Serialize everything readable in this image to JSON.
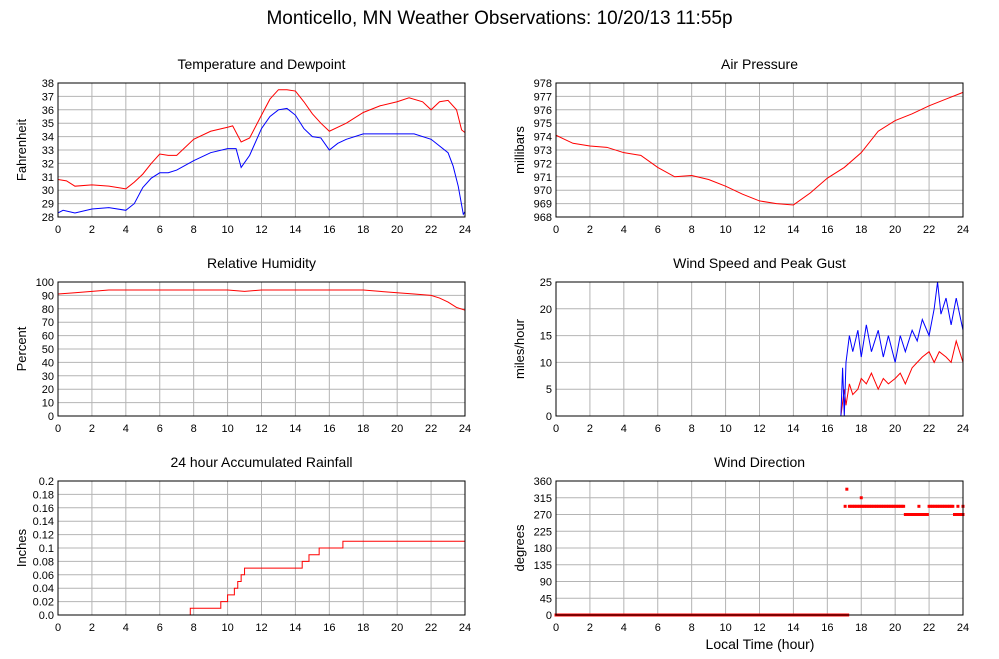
{
  "title": "Monticello, MN Weather Observations: 10/20/13 11:55p",
  "x_axis_label": "Local Time (hour)",
  "colors": {
    "primary": "#ff0000",
    "secondary": "#0000ff",
    "grid": "#b4b4b4",
    "frame": "#000000"
  },
  "chart_data": [
    {
      "id": "temp",
      "type": "line",
      "title": "Temperature and Dewpoint",
      "ylabel": "Fahrenheit",
      "xlim": [
        0,
        24
      ],
      "ylim": [
        28,
        38
      ],
      "xticks": [
        0,
        2,
        4,
        6,
        8,
        10,
        12,
        14,
        16,
        18,
        20,
        22,
        24
      ],
      "yticks": [
        28,
        29,
        30,
        31,
        32,
        33,
        34,
        35,
        36,
        37,
        38
      ],
      "series": [
        {
          "color": "#ff0000",
          "x": [
            0,
            0.5,
            1,
            2,
            3,
            4,
            4.5,
            5,
            5.5,
            6,
            6.5,
            7,
            8,
            9,
            10,
            10.3,
            10.8,
            11.3,
            12,
            12.5,
            13,
            13.5,
            14,
            14.5,
            15,
            15.5,
            16,
            17,
            18,
            19,
            20,
            20.7,
            21.5,
            22,
            22.5,
            23,
            23.5,
            23.8,
            24
          ],
          "y": [
            30.8,
            30.7,
            30.3,
            30.4,
            30.3,
            30.1,
            30.6,
            31.2,
            32.0,
            32.7,
            32.6,
            32.6,
            33.8,
            34.4,
            34.7,
            34.8,
            33.6,
            33.9,
            35.6,
            36.8,
            37.5,
            37.5,
            37.4,
            36.6,
            35.7,
            35.0,
            34.4,
            35.0,
            35.8,
            36.3,
            36.6,
            36.9,
            36.6,
            36.0,
            36.6,
            36.7,
            36.0,
            34.5,
            34.3
          ]
        },
        {
          "color": "#0000ff",
          "x": [
            0,
            0.3,
            1,
            2,
            3,
            4,
            4.5,
            5,
            5.5,
            6,
            6.5,
            7,
            8,
            9,
            10,
            10.5,
            10.8,
            11.3,
            12,
            12.5,
            13,
            13.5,
            14,
            14.5,
            15,
            15.5,
            16,
            16.5,
            17,
            18,
            19,
            20,
            21,
            22,
            22.5,
            23,
            23.3,
            23.6,
            23.9,
            24
          ],
          "y": [
            28.3,
            28.5,
            28.3,
            28.6,
            28.7,
            28.5,
            29.0,
            30.2,
            30.9,
            31.3,
            31.3,
            31.5,
            32.2,
            32.8,
            33.1,
            33.1,
            31.7,
            32.6,
            34.6,
            35.5,
            36.0,
            36.1,
            35.6,
            34.6,
            34.0,
            33.9,
            33.0,
            33.5,
            33.8,
            34.2,
            34.2,
            34.2,
            34.2,
            33.8,
            33.3,
            32.8,
            31.8,
            30.3,
            28.2,
            28.4
          ]
        }
      ]
    },
    {
      "id": "pressure",
      "type": "line",
      "title": "Air Pressure",
      "ylabel": "millibars",
      "xlim": [
        0,
        24
      ],
      "ylim": [
        968,
        978
      ],
      "xticks": [
        0,
        2,
        4,
        6,
        8,
        10,
        12,
        14,
        16,
        18,
        20,
        22,
        24
      ],
      "yticks": [
        968,
        969,
        970,
        971,
        972,
        973,
        974,
        975,
        976,
        977,
        978
      ],
      "series": [
        {
          "color": "#ff0000",
          "x": [
            0,
            0.5,
            1,
            2,
            3,
            4,
            5,
            6,
            7,
            8,
            9,
            10,
            11,
            12,
            13,
            14,
            15,
            16,
            17,
            18,
            19,
            20,
            21,
            22,
            23,
            24
          ],
          "y": [
            974.1,
            973.8,
            973.5,
            973.3,
            973.2,
            972.8,
            972.6,
            971.7,
            971.0,
            971.1,
            970.8,
            970.3,
            969.7,
            969.2,
            969.0,
            968.9,
            969.8,
            970.9,
            971.7,
            972.8,
            974.4,
            975.2,
            975.7,
            976.3,
            976.8,
            977.3
          ]
        }
      ]
    },
    {
      "id": "humidity",
      "type": "line",
      "title": "Relative Humidity",
      "ylabel": "Percent",
      "xlim": [
        0,
        24
      ],
      "ylim": [
        0,
        100
      ],
      "xticks": [
        0,
        2,
        4,
        6,
        8,
        10,
        12,
        14,
        16,
        18,
        20,
        22,
        24
      ],
      "yticks": [
        0,
        10,
        20,
        30,
        40,
        50,
        60,
        70,
        80,
        90,
        100
      ],
      "series": [
        {
          "color": "#ff0000",
          "x": [
            0,
            1,
            2,
            3,
            4,
            6,
            8,
            10,
            11,
            12,
            14,
            16,
            18,
            19,
            20,
            21,
            22,
            22.5,
            23,
            23.5,
            24
          ],
          "y": [
            91,
            92,
            93,
            94,
            94,
            94,
            94,
            94,
            93,
            94,
            94,
            94,
            94,
            93,
            92,
            91,
            90,
            88,
            85,
            81,
            79
          ]
        }
      ]
    },
    {
      "id": "wind",
      "type": "line",
      "title": "Wind Speed and Peak Gust",
      "ylabel": "miles/hour",
      "xlim": [
        0,
        24
      ],
      "ylim": [
        0,
        25
      ],
      "xticks": [
        0,
        2,
        4,
        6,
        8,
        10,
        12,
        14,
        16,
        18,
        20,
        22,
        24
      ],
      "yticks": [
        0,
        5,
        10,
        15,
        20,
        25
      ],
      "series": [
        {
          "color": "#ff0000",
          "x": [
            0,
            16.8,
            17.0,
            17.1,
            17.3,
            17.5,
            17.8,
            18.0,
            18.3,
            18.6,
            19.0,
            19.3,
            19.6,
            20.0,
            20.3,
            20.6,
            21.0,
            21.3,
            21.6,
            22.0,
            22.3,
            22.6,
            23.0,
            23.3,
            23.6,
            24
          ],
          "y": [
            0,
            0,
            5,
            2,
            6,
            4,
            5,
            7,
            6,
            8,
            5,
            7,
            6,
            7,
            8,
            6,
            9,
            10,
            11,
            12,
            10,
            12,
            11,
            10,
            14,
            10
          ]
        },
        {
          "color": "#0000ff",
          "x": [
            0,
            16.8,
            16.9,
            17.0,
            17.1,
            17.3,
            17.5,
            17.8,
            18.0,
            18.3,
            18.6,
            19.0,
            19.3,
            19.6,
            20.0,
            20.3,
            20.6,
            21.0,
            21.3,
            21.6,
            22.0,
            22.3,
            22.5,
            22.7,
            23.0,
            23.3,
            23.6,
            24
          ],
          "y": [
            0,
            0,
            9,
            0,
            10,
            15,
            12,
            16,
            11,
            17,
            12,
            16,
            11,
            15,
            10,
            15,
            12,
            16,
            14,
            18,
            15,
            20,
            25,
            19,
            22,
            17,
            22,
            16
          ]
        }
      ]
    },
    {
      "id": "rain",
      "type": "line",
      "title": "24 hour Accumulated Rainfall",
      "ylabel": "Inches",
      "xlim": [
        0,
        24
      ],
      "ylim": [
        0,
        0.2
      ],
      "xticks": [
        0,
        2,
        4,
        6,
        8,
        10,
        12,
        14,
        16,
        18,
        20,
        22,
        24
      ],
      "yticks": [
        0.0,
        0.02,
        0.04,
        0.06,
        0.08,
        0.1,
        0.12,
        0.14,
        0.16,
        0.18,
        0.2
      ],
      "ytick_labels": [
        "0.0",
        "0.02",
        "0.04",
        "0.06",
        "0.08",
        "0.1",
        "0.12",
        "0.14",
        "0.16",
        "0.18",
        "0.2"
      ],
      "step": true,
      "series": [
        {
          "color": "#ff0000",
          "x": [
            0,
            7.8,
            9.0,
            9.6,
            10.0,
            10.4,
            10.6,
            10.8,
            11.0,
            14.4,
            14.8,
            15.4,
            15.9,
            16.8,
            24
          ],
          "y": [
            0,
            0.01,
            0.01,
            0.02,
            0.03,
            0.04,
            0.05,
            0.06,
            0.07,
            0.08,
            0.09,
            0.1,
            0.1,
            0.11,
            0.11
          ]
        }
      ]
    },
    {
      "id": "direction",
      "type": "scatter",
      "title": "Wind Direction",
      "ylabel": "degrees",
      "xlim": [
        0,
        24
      ],
      "ylim": [
        0,
        360
      ],
      "xticks": [
        0,
        2,
        4,
        6,
        8,
        10,
        12,
        14,
        16,
        18,
        20,
        22,
        24
      ],
      "yticks": [
        0,
        45,
        90,
        135,
        180,
        225,
        270,
        315,
        360
      ],
      "series": [
        {
          "color": "#ff0000",
          "runs": [
            {
              "x0": 0,
              "x1": 17.2,
              "step": 0.1,
              "y": 0
            },
            {
              "x0": 17.3,
              "x1": 20.5,
              "step": 0.1,
              "y": 292
            },
            {
              "x0": 20.6,
              "x1": 21.9,
              "step": 0.1,
              "y": 270
            },
            {
              "x0": 22.0,
              "x1": 23.4,
              "step": 0.1,
              "y": 292
            },
            {
              "x0": 23.5,
              "x1": 24.0,
              "step": 0.1,
              "y": 270
            }
          ],
          "points": [
            [
              17.15,
              338
            ],
            [
              18.0,
              315
            ],
            [
              17.05,
              292
            ],
            [
              21.4,
              292
            ],
            [
              23.7,
              292
            ],
            [
              24.0,
              292
            ]
          ]
        }
      ]
    }
  ]
}
